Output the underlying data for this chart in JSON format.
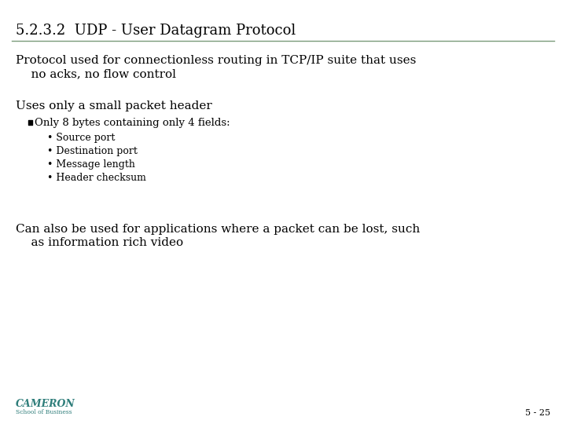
{
  "title": "5.2.3.2  UDP - User Datagram Protocol",
  "background_color": "#ffffff",
  "title_color": "#000000",
  "title_fontsize": 13,
  "separator_color": "#7a9a7a",
  "body_text_color": "#000000",
  "body_fontsize": 11,
  "bullet1_fontsize": 9.5,
  "bullet2_fontsize": 9,
  "footer_color": "#2e7d7a",
  "slide_number": "5 - 25",
  "cameron_text": "CAMERON",
  "school_text": "School of Business",
  "para1_line1": "Protocol used for connectionless routing in TCP/IP suite that uses",
  "para1_line2": "    no acks, no flow control",
  "para2_head": "Uses only a small packet header",
  "bullet_level1": "Only 8 bytes containing only 4 fields:",
  "bullet_level2": [
    "Source port",
    "Destination port",
    "Message length",
    "Header checksum"
  ],
  "para3_line1": "Can also be used for applications where a packet can be lost, such",
  "para3_line2": "    as information rich video"
}
